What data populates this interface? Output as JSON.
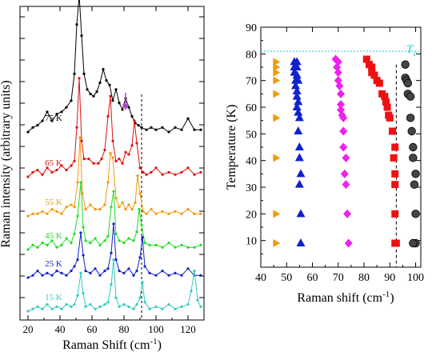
{
  "chart_data": [
    {
      "type": "line",
      "panel": "left",
      "xlabel": "Raman Shift (cm-1)",
      "ylabel": "Raman intensity (arbitrary units)",
      "xlim": [
        15,
        130
      ],
      "x_ticks": [
        20,
        40,
        60,
        80,
        100,
        120
      ],
      "y_tick_labels": "none",
      "dashed_vertical_x": 91,
      "arrow": {
        "x": 81,
        "color": "#b040d0"
      },
      "series": [
        {
          "name": "75 K",
          "color": "#000000",
          "offset": 7.5,
          "x": [
            20,
            23,
            26,
            29,
            32,
            35,
            38,
            41,
            44,
            47,
            49,
            50.5,
            52,
            53.5,
            55,
            57,
            59,
            61,
            63,
            65,
            67,
            69,
            71,
            73,
            75,
            77,
            79,
            81,
            83,
            85,
            87,
            89,
            91,
            94,
            97,
            100,
            104,
            108,
            112,
            116,
            120,
            124,
            128
          ],
          "y": [
            0,
            0.2,
            0.3,
            0.5,
            0.9,
            0.5,
            0.8,
            0.9,
            1.1,
            1.4,
            2.6,
            4.8,
            6.1,
            4.3,
            2.6,
            1.9,
            1.7,
            1.6,
            1.8,
            2.2,
            2.8,
            2.3,
            2.1,
            1.4,
            1.9,
            1.3,
            1.0,
            1.5,
            1.1,
            0.7,
            0.4,
            0.3,
            0.2,
            0.1,
            0.2,
            0.1,
            0.2,
            0,
            0.2,
            0.1,
            0.6,
            0.1,
            0.1
          ]
        },
        {
          "name": "65 K",
          "color": "#dd1111",
          "offset": 5.5,
          "x": [
            20,
            23,
            26,
            29,
            32,
            35,
            38,
            41,
            44,
            47,
            49,
            50.5,
            52,
            53.5,
            55,
            58,
            61,
            64,
            66,
            68,
            70,
            71.5,
            73,
            75,
            77,
            79,
            81,
            83,
            85,
            86.5,
            88,
            90,
            92,
            94,
            97,
            100,
            104,
            108,
            112,
            116,
            120,
            124,
            128
          ],
          "y": [
            0,
            0.2,
            0.3,
            0.1,
            0.4,
            0.2,
            0.3,
            0.5,
            0.3,
            0.5,
            0.7,
            2.2,
            4.4,
            1.6,
            0.8,
            0.8,
            0.6,
            0.6,
            0.8,
            1.2,
            2.7,
            3.6,
            1.6,
            0.7,
            0.8,
            0.6,
            1.1,
            1.0,
            1.4,
            2.5,
            1.5,
            0.4,
            0.2,
            0.1,
            0.2,
            0.4,
            0.1,
            0.2,
            0.1,
            0.2,
            0.4,
            0.1,
            0.2
          ]
        },
        {
          "name": "55 K",
          "color": "#f09a0e",
          "offset": 3.75,
          "x": [
            20,
            23,
            26,
            29,
            32,
            35,
            38,
            41,
            44,
            47,
            49,
            51,
            52.5,
            54,
            56,
            59,
            62,
            65,
            68,
            70,
            71.5,
            73,
            75,
            77,
            79,
            81,
            83,
            85,
            87,
            88.5,
            90,
            92,
            94,
            97,
            100,
            104,
            108,
            112,
            116,
            120,
            124,
            128
          ],
          "y": [
            0,
            0.1,
            0.1,
            0.2,
            0.1,
            0.3,
            0.2,
            0.1,
            0.4,
            0.5,
            0.4,
            1.5,
            3.5,
            1.0,
            0.3,
            0.5,
            0.3,
            0.3,
            0.5,
            1.5,
            2.8,
            2.6,
            0.8,
            0.4,
            0.6,
            0.3,
            0.5,
            0.3,
            0.6,
            1.8,
            1.0,
            0.2,
            0.1,
            0.3,
            0.1,
            0.2,
            0.1,
            0.2,
            0.1,
            0.3,
            0.1,
            0.1
          ]
        },
        {
          "name": "45 K",
          "color": "#22dd22",
          "offset": 2.25,
          "x": [
            20,
            23,
            26,
            29,
            32,
            35,
            38,
            41,
            44,
            47,
            49,
            51,
            53,
            54.5,
            56,
            59,
            62,
            65,
            68,
            70,
            72,
            73.5,
            75,
            77,
            80,
            83,
            86,
            88,
            89.5,
            91,
            93,
            96,
            100,
            104,
            108,
            112,
            116,
            120,
            124,
            128
          ],
          "y": [
            0,
            0.2,
            0.1,
            0.3,
            0.2,
            0.4,
            0.1,
            0.2,
            0.5,
            0.3,
            0.7,
            1.5,
            3.0,
            1.0,
            0.4,
            0.3,
            0.5,
            0.2,
            0.4,
            0.6,
            1.9,
            2.6,
            0.7,
            0.4,
            0.3,
            0.5,
            0.4,
            0.8,
            1.8,
            1.1,
            0.3,
            0.2,
            0.2,
            0.1,
            0.3,
            0.1,
            0.2,
            0.1,
            0.1,
            0.2
          ]
        },
        {
          "name": "25 K",
          "color": "#1122cc",
          "offset": 1.0,
          "x": [
            20,
            23,
            26,
            29,
            32,
            35,
            38,
            41,
            44,
            47,
            49,
            51,
            53,
            54.5,
            56,
            59,
            62,
            65,
            68,
            70,
            72,
            73.5,
            75,
            77,
            80,
            83,
            86,
            88,
            90,
            91.5,
            93,
            96,
            100,
            104,
            108,
            112,
            116,
            120,
            124,
            128
          ],
          "y": [
            0,
            0.1,
            0.3,
            0.1,
            0.2,
            0.1,
            0.3,
            0.2,
            0.1,
            0.3,
            0.5,
            0.8,
            2.0,
            1.0,
            0.3,
            0.2,
            0.4,
            0.1,
            0.3,
            0.4,
            1.1,
            2.4,
            0.8,
            0.3,
            0.2,
            0.4,
            0.1,
            0.3,
            0.9,
            1.8,
            0.5,
            0.2,
            0.1,
            0.3,
            0.1,
            0.2,
            0.1,
            0.4,
            0.1,
            0.1
          ]
        },
        {
          "name": "15 K",
          "color": "#33ccc0",
          "offset": -0.5,
          "x": [
            20,
            23,
            26,
            29,
            32,
            35,
            38,
            41,
            44,
            47,
            49,
            51,
            53,
            54.5,
            56,
            59,
            62,
            65,
            68,
            70,
            72,
            73.5,
            75,
            77,
            80,
            83,
            86,
            88,
            90,
            91.5,
            93,
            96,
            100,
            104,
            108,
            112,
            116,
            120,
            122,
            124,
            126,
            128
          ],
          "y": [
            0,
            0.1,
            0.2,
            0.1,
            0.3,
            0.1,
            0.2,
            0.1,
            0.3,
            0.2,
            0.3,
            0.7,
            1.7,
            0.8,
            0.2,
            0.3,
            0.1,
            0.2,
            0.3,
            0.4,
            1.2,
            2.3,
            0.6,
            0.2,
            0.3,
            0.2,
            0.1,
            0.3,
            0.6,
            1.3,
            0.4,
            0.1,
            0.2,
            0.1,
            0.3,
            0.1,
            0.2,
            0.3,
            0.9,
            1.8,
            0.5,
            0.2
          ]
        }
      ]
    },
    {
      "type": "scatter",
      "panel": "right",
      "xlabel": "Raman shift (cm-1)",
      "ylabel": "Temperature (K)",
      "xlim": [
        40,
        102
      ],
      "ylim": [
        0,
        90
      ],
      "x_ticks": [
        40,
        50,
        60,
        70,
        80,
        90,
        100
      ],
      "y_ticks": [
        10,
        20,
        30,
        40,
        50,
        60,
        70,
        80,
        90
      ],
      "tc": {
        "label": "T",
        "subscript": "c",
        "y": 81,
        "color": "#22cccc"
      },
      "dashed_vertical_x": 92.5,
      "series": [
        {
          "marker": "triangle-right",
          "color": "#f09a0e",
          "points": [
            [
              46,
              77
            ],
            [
              46,
              75
            ],
            [
              46,
              73
            ],
            [
              46,
              70
            ],
            [
              46,
              65
            ],
            [
              46,
              56
            ],
            [
              46,
              41
            ],
            [
              46,
              20
            ],
            [
              46,
              9
            ]
          ]
        },
        {
          "marker": "triangle-up",
          "color": "#1122cc",
          "points": [
            [
              53,
              77
            ],
            [
              54,
              77
            ],
            [
              53,
              75
            ],
            [
              54,
              75
            ],
            [
              53,
              73
            ],
            [
              54,
              72
            ],
            [
              53.5,
              70
            ],
            [
              54.5,
              70
            ],
            [
              53.5,
              68
            ],
            [
              54,
              66
            ],
            [
              54,
              64
            ],
            [
              54.5,
              62
            ],
            [
              54,
              60
            ],
            [
              54.5,
              58
            ],
            [
              55,
              56
            ],
            [
              54.5,
              51
            ],
            [
              55,
              45
            ],
            [
              55,
              41
            ],
            [
              55.5,
              35
            ],
            [
              55,
              31
            ],
            [
              55.5,
              20
            ],
            [
              55.5,
              9
            ]
          ]
        },
        {
          "marker": "diamond",
          "color": "#ee22ee",
          "points": [
            [
              69,
              78
            ],
            [
              70,
              77
            ],
            [
              69.5,
              75
            ],
            [
              70,
              73
            ],
            [
              70,
              70
            ],
            [
              70.5,
              68
            ],
            [
              71,
              65
            ],
            [
              71,
              61
            ],
            [
              71,
              59
            ],
            [
              71.5,
              57
            ],
            [
              72,
              56
            ],
            [
              72,
              51
            ],
            [
              72,
              45
            ],
            [
              73,
              41
            ],
            [
              72.5,
              35
            ],
            [
              73,
              31
            ],
            [
              73.5,
              20
            ],
            [
              74,
              9
            ]
          ]
        },
        {
          "marker": "square",
          "color": "#ee1111",
          "points": [
            [
              81,
              78
            ],
            [
              82,
              76
            ],
            [
              83,
              75
            ],
            [
              83,
              73
            ],
            [
              84,
              72
            ],
            [
              85,
              70
            ],
            [
              86,
              69
            ],
            [
              87,
              65
            ],
            [
              88,
              64
            ],
            [
              88.5,
              62
            ],
            [
              89,
              60
            ],
            [
              89.5,
              57
            ],
            [
              90,
              56
            ],
            [
              91,
              51
            ],
            [
              92,
              45
            ],
            [
              91.5,
              41
            ],
            [
              92,
              35
            ],
            [
              92,
              31
            ],
            [
              92,
              20
            ],
            [
              92.5,
              9
            ],
            [
              92,
              9
            ]
          ]
        },
        {
          "marker": "circle",
          "color": "#444444",
          "points": [
            [
              96,
              76
            ],
            [
              96,
              71
            ],
            [
              96.5,
              70
            ],
            [
              97,
              69
            ],
            [
              97,
              65
            ],
            [
              98,
              64
            ],
            [
              98,
              56
            ],
            [
              98.5,
              51
            ],
            [
              99,
              45
            ],
            [
              99,
              41
            ],
            [
              100,
              35
            ],
            [
              99.5,
              31
            ],
            [
              100,
              20
            ],
            [
              100,
              9
            ],
            [
              99,
              9
            ]
          ]
        }
      ]
    }
  ]
}
